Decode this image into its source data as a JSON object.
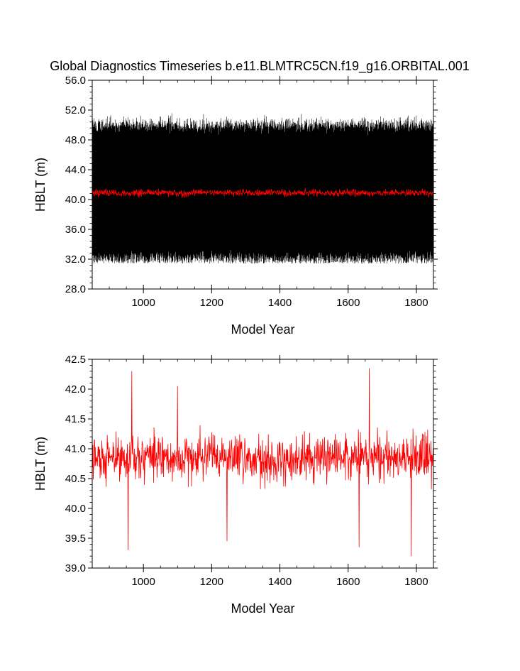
{
  "figure": {
    "title": "Global Diagnostics Timeseries b.e11.BLMTRC5CN.f19_g16.ORBITAL.001"
  },
  "chart_data": [
    {
      "type": "line",
      "title": "Global Diagnostics Timeseries b.e11.BLMTRC5CN.f19_g16.ORBITAL.001",
      "xlabel": "Model Year",
      "ylabel": "HBLT (m)",
      "xlim": [
        850,
        1850
      ],
      "ylim": [
        28.0,
        56.0
      ],
      "x_ticks": [
        1000,
        1200,
        1400,
        1600,
        1800
      ],
      "x_tick_labels": [
        "1000",
        "1200",
        "1400",
        "1600",
        "1800"
      ],
      "y_ticks": [
        28.0,
        32.0,
        36.0,
        40.0,
        44.0,
        48.0,
        52.0,
        56.0
      ],
      "y_tick_labels": [
        "28.0",
        "32.0",
        "36.0",
        "40.0",
        "44.0",
        "48.0",
        "52.0",
        "56.0"
      ],
      "grid": false,
      "series": [
        {
          "style": "monthly",
          "color": "#000000",
          "mean": 41.0,
          "typical_range": [
            33.5,
            50.5
          ],
          "min": 31.4,
          "max": 53.2,
          "x_start": 850,
          "x_end": 1850
        },
        {
          "style": "annual",
          "color": "#ff0000",
          "mean": 40.9,
          "typical_range": [
            40.0,
            41.8
          ],
          "x_start": 850,
          "x_end": 1850
        }
      ]
    },
    {
      "type": "line",
      "xlabel": "Model Year",
      "ylabel": "HBLT (m)",
      "xlim": [
        850,
        1850
      ],
      "ylim": [
        39.0,
        42.5
      ],
      "x_ticks": [
        1000,
        1200,
        1400,
        1600,
        1800
      ],
      "x_tick_labels": [
        "1000",
        "1200",
        "1400",
        "1600",
        "1800"
      ],
      "y_ticks": [
        39.0,
        39.5,
        40.0,
        40.5,
        41.0,
        41.5,
        42.0,
        42.5
      ],
      "y_tick_labels": [
        "39.0",
        "39.5",
        "40.0",
        "40.5",
        "41.0",
        "41.5",
        "42.0",
        "42.5"
      ],
      "grid": false,
      "series": [
        {
          "style": "annual",
          "color": "#ff0000",
          "mean": 40.85,
          "typical_range": [
            40.1,
            41.6
          ],
          "min": 39.2,
          "max": 42.35,
          "x_start": 850,
          "x_end": 1850,
          "notable_points": [
            {
              "x": 955,
              "y": 39.3
            },
            {
              "x": 966,
              "y": 42.3
            },
            {
              "x": 1100,
              "y": 42.05
            },
            {
              "x": 1245,
              "y": 39.45
            },
            {
              "x": 1632,
              "y": 39.35
            },
            {
              "x": 1662,
              "y": 42.35
            },
            {
              "x": 1785,
              "y": 39.2
            }
          ]
        }
      ]
    }
  ]
}
